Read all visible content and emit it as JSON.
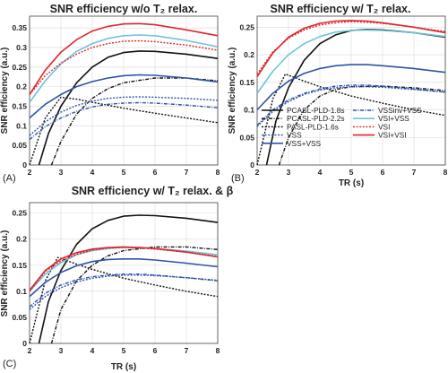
{
  "series_styles": [
    {
      "key": "pcasl18",
      "color": "#111111",
      "dash": "",
      "width": 1.6
    },
    {
      "key": "pcasl22",
      "color": "#111111",
      "dash": "4,1.5,1,1.5",
      "width": 1.4
    },
    {
      "key": "pasl16",
      "color": "#111111",
      "dash": "2,1.6",
      "width": 1.4
    },
    {
      "key": "vss",
      "color": "#2f52a8",
      "dash": "2,1.6",
      "width": 1.4
    },
    {
      "key": "vssvss",
      "color": "#2f52a8",
      "dash": "",
      "width": 1.6
    },
    {
      "key": "vssinv",
      "color": "#2f52a8",
      "dash": "4,1.5,1,1.5",
      "width": 1.4
    },
    {
      "key": "vsivss",
      "color": "#6cc4dc",
      "dash": "",
      "width": 1.6
    },
    {
      "key": "vsi",
      "color": "#e0262b",
      "dash": "2,1.6",
      "width": 1.4
    },
    {
      "key": "vsivsi",
      "color": "#e0262b",
      "dash": "",
      "width": 1.6
    }
  ],
  "legend": [
    {
      "key": "pcasl18",
      "label": "PCASL-PLD-1.8s"
    },
    {
      "key": "pcasl22",
      "label": "PCASL-PLD-2.2s"
    },
    {
      "key": "pasl16",
      "label": "PASL-PLD-1.6s"
    },
    {
      "key": "vss",
      "label": "VSS"
    },
    {
      "key": "vssvss",
      "label": "VSS+VSS"
    },
    {
      "key": "vssinv",
      "label": "VSSinv+VSS"
    },
    {
      "key": "vsivss",
      "label": "VSI+VSS"
    },
    {
      "key": "vsi",
      "label": "VSI"
    },
    {
      "key": "vsivsi",
      "label": "VSI+VSI"
    }
  ],
  "chart_data": [
    {
      "type": "line",
      "panel_label": "(A)",
      "title": "SNR efficiency w/o T₂ relax.",
      "xlabel": "",
      "ylabel": "SNR efficiency (a.u.)",
      "xlim": [
        2,
        8
      ],
      "ylim": [
        0,
        0.38
      ],
      "xticks": [
        2,
        3,
        4,
        5,
        6,
        7,
        8
      ],
      "yticks": [
        0,
        0.05,
        0.1,
        0.15,
        0.2,
        0.25,
        0.3,
        0.35
      ],
      "grid": true,
      "series": [
        {
          "key": "pcasl18",
          "x": [
            2.3,
            2.6,
            3.0,
            3.5,
            4.0,
            4.5,
            5.0,
            5.5,
            6.0,
            7.0,
            8.0
          ],
          "y": [
            0,
            0.08,
            0.15,
            0.21,
            0.25,
            0.275,
            0.287,
            0.291,
            0.29,
            0.283,
            0.272
          ]
        },
        {
          "key": "pcasl22",
          "x": [
            2.7,
            3.0,
            3.5,
            4.0,
            4.5,
            5.0,
            6.0,
            7.0,
            8.0
          ],
          "y": [
            0,
            0.06,
            0.13,
            0.17,
            0.195,
            0.21,
            0.222,
            0.222,
            0.215
          ]
        },
        {
          "key": "pasl16",
          "x": [
            2.0,
            2.5,
            3.0,
            3.5,
            4.0,
            5.0,
            6.0,
            7.0,
            8.0
          ],
          "y": [
            0,
            0.12,
            0.173,
            0.168,
            0.16,
            0.145,
            0.132,
            0.12,
            0.108
          ]
        },
        {
          "key": "vss",
          "x": [
            2.0,
            2.5,
            3.0,
            3.5,
            4.0,
            4.5,
            5.0,
            5.5,
            6.0,
            7.0,
            8.0
          ],
          "y": [
            0.075,
            0.11,
            0.135,
            0.152,
            0.163,
            0.17,
            0.173,
            0.174,
            0.173,
            0.17,
            0.165
          ]
        },
        {
          "key": "vssvss",
          "x": [
            2.0,
            2.5,
            3.0,
            3.5,
            4.0,
            4.5,
            5.0,
            5.5,
            6.0,
            7.0,
            8.0
          ],
          "y": [
            0.12,
            0.155,
            0.18,
            0.2,
            0.213,
            0.222,
            0.228,
            0.23,
            0.229,
            0.222,
            0.212
          ]
        },
        {
          "key": "vssinv",
          "x": [
            2.0,
            2.5,
            3.0,
            3.5,
            4.0,
            4.5,
            5.0,
            5.5,
            6.0,
            7.0,
            8.0
          ],
          "y": [
            0.065,
            0.098,
            0.12,
            0.137,
            0.148,
            0.155,
            0.158,
            0.159,
            0.158,
            0.153,
            0.146
          ]
        },
        {
          "key": "vsivss",
          "x": [
            2.0,
            2.5,
            3.0,
            3.5,
            4.0,
            4.5,
            5.0,
            5.5,
            6.0,
            7.0,
            8.0
          ],
          "y": [
            0.16,
            0.215,
            0.258,
            0.29,
            0.31,
            0.323,
            0.33,
            0.332,
            0.33,
            0.318,
            0.302
          ]
        },
        {
          "key": "vsi",
          "x": [
            2.0,
            2.5,
            3.0,
            3.5,
            4.0,
            4.5,
            5.0,
            5.5,
            6.0,
            7.0,
            8.0
          ],
          "y": [
            0.18,
            0.228,
            0.26,
            0.283,
            0.3,
            0.31,
            0.316,
            0.317,
            0.315,
            0.306,
            0.293
          ]
        },
        {
          "key": "vsivsi",
          "x": [
            2.0,
            2.5,
            3.0,
            3.5,
            4.0,
            4.5,
            5.0,
            5.5,
            6.0,
            7.0,
            8.0
          ],
          "y": [
            0.18,
            0.242,
            0.288,
            0.32,
            0.342,
            0.354,
            0.36,
            0.361,
            0.358,
            0.345,
            0.33
          ]
        }
      ]
    },
    {
      "type": "line",
      "panel_label": "(B)",
      "title": "SNR efficiency w/ T₂ relax.",
      "xlabel": "TR (s)",
      "ylabel": "SNR efficiency (a.u.)",
      "xlim": [
        2,
        8
      ],
      "ylim": [
        0,
        0.27
      ],
      "xticks": [
        2,
        3,
        4,
        5,
        6,
        7,
        8
      ],
      "yticks": [
        0,
        0.05,
        0.1,
        0.15,
        0.2,
        0.25
      ],
      "grid": true,
      "series": [
        {
          "key": "pcasl18",
          "x": [
            2.3,
            2.6,
            3.0,
            3.5,
            4.0,
            4.5,
            5.0,
            5.5,
            6.0,
            7.0,
            8.0
          ],
          "y": [
            0,
            0.08,
            0.14,
            0.19,
            0.22,
            0.236,
            0.244,
            0.246,
            0.245,
            0.24,
            0.232
          ]
        },
        {
          "key": "pcasl22",
          "x": [
            2.7,
            3.0,
            3.5,
            4.0,
            4.5,
            5.0,
            6.0,
            7.0,
            8.0
          ],
          "y": [
            0,
            0.05,
            0.1,
            0.125,
            0.137,
            0.142,
            0.143,
            0.14,
            0.135
          ]
        },
        {
          "key": "pasl16",
          "x": [
            2.0,
            2.5,
            2.9,
            3.5,
            4.0,
            5.0,
            6.0,
            7.0,
            8.0
          ],
          "y": [
            0,
            0.12,
            0.165,
            0.152,
            0.142,
            0.125,
            0.112,
            0.1,
            0.09
          ]
        },
        {
          "key": "vss",
          "x": [
            2.0,
            2.5,
            3.0,
            3.5,
            4.0,
            4.5,
            5.0,
            5.5,
            6.0,
            7.0,
            8.0
          ],
          "y": [
            0.07,
            0.097,
            0.115,
            0.128,
            0.136,
            0.14,
            0.142,
            0.142,
            0.141,
            0.137,
            0.132
          ]
        },
        {
          "key": "vssvss",
          "x": [
            2.0,
            2.5,
            3.0,
            3.5,
            4.0,
            4.5,
            5.0,
            5.5,
            6.0,
            7.0,
            8.0
          ],
          "y": [
            0.1,
            0.13,
            0.152,
            0.166,
            0.175,
            0.18,
            0.182,
            0.182,
            0.18,
            0.175,
            0.168
          ]
        },
        {
          "key": "vssinv",
          "x": [
            2.0,
            2.5,
            3.0,
            3.5,
            4.0,
            4.5,
            5.0,
            5.5,
            6.0,
            7.0,
            8.0
          ],
          "y": [
            0.072,
            0.1,
            0.118,
            0.13,
            0.138,
            0.143,
            0.145,
            0.145,
            0.143,
            0.138,
            0.132
          ]
        },
        {
          "key": "vsivss",
          "x": [
            2.0,
            2.5,
            3.0,
            3.5,
            4.0,
            4.5,
            5.0,
            5.5,
            6.0,
            7.0,
            8.0
          ],
          "y": [
            0.13,
            0.17,
            0.2,
            0.22,
            0.233,
            0.241,
            0.244,
            0.245,
            0.244,
            0.24,
            0.233
          ]
        },
        {
          "key": "vsi",
          "x": [
            2.0,
            2.5,
            3.0,
            3.5,
            4.0,
            4.5,
            5.0,
            5.5,
            6.0,
            7.0,
            8.0
          ],
          "y": [
            0.165,
            0.205,
            0.23,
            0.245,
            0.254,
            0.258,
            0.26,
            0.259,
            0.257,
            0.25,
            0.242
          ]
        },
        {
          "key": "vsivsi",
          "x": [
            2.0,
            2.5,
            3.0,
            3.5,
            4.0,
            4.5,
            5.0,
            5.5,
            6.0,
            7.0,
            8.0
          ],
          "y": [
            0.16,
            0.203,
            0.232,
            0.248,
            0.257,
            0.261,
            0.262,
            0.261,
            0.258,
            0.25,
            0.24
          ]
        }
      ]
    },
    {
      "type": "line",
      "panel_label": "(C)",
      "title": "SNR efficiency w/ T₂ relax. & β",
      "xlabel": "TR (s)",
      "ylabel": "SNR efficiency (a.u.)",
      "xlim": [
        2,
        8
      ],
      "ylim": [
        0,
        0.27
      ],
      "xticks": [
        2,
        3,
        4,
        5,
        6,
        7,
        8
      ],
      "yticks": [
        0,
        0.05,
        0.1,
        0.15,
        0.2,
        0.25
      ],
      "grid": true,
      "series": [
        {
          "key": "pcasl18",
          "x": [
            2.3,
            2.6,
            3.0,
            3.5,
            4.0,
            4.5,
            5.0,
            5.5,
            6.0,
            7.0,
            8.0
          ],
          "y": [
            0,
            0.08,
            0.14,
            0.19,
            0.22,
            0.236,
            0.244,
            0.246,
            0.245,
            0.24,
            0.232
          ]
        },
        {
          "key": "pcasl22",
          "x": [
            2.7,
            3.0,
            3.5,
            4.0,
            4.5,
            5.0,
            6.0,
            7.0,
            8.0
          ],
          "y": [
            0,
            0.065,
            0.12,
            0.15,
            0.168,
            0.178,
            0.185,
            0.185,
            0.18
          ]
        },
        {
          "key": "pasl16",
          "x": [
            2.0,
            2.5,
            2.9,
            3.5,
            4.0,
            5.0,
            6.0,
            7.0,
            8.0
          ],
          "y": [
            0,
            0.12,
            0.165,
            0.152,
            0.142,
            0.125,
            0.112,
            0.1,
            0.09
          ]
        },
        {
          "key": "vss",
          "x": [
            2.0,
            2.5,
            3.0,
            3.5,
            4.0,
            4.5,
            5.0,
            5.5,
            6.0,
            7.0,
            8.0
          ],
          "y": [
            0.065,
            0.09,
            0.107,
            0.118,
            0.125,
            0.129,
            0.131,
            0.131,
            0.13,
            0.126,
            0.121
          ]
        },
        {
          "key": "vssvss",
          "x": [
            2.0,
            2.5,
            3.0,
            3.5,
            4.0,
            4.5,
            5.0,
            5.5,
            6.0,
            7.0,
            8.0
          ],
          "y": [
            0.09,
            0.117,
            0.136,
            0.149,
            0.157,
            0.161,
            0.162,
            0.162,
            0.16,
            0.154,
            0.147
          ]
        },
        {
          "key": "vssinv",
          "x": [
            2.0,
            2.5,
            3.0,
            3.5,
            4.0,
            4.5,
            5.0,
            5.5,
            6.0,
            7.0,
            8.0
          ],
          "y": [
            0.07,
            0.096,
            0.112,
            0.122,
            0.128,
            0.131,
            0.133,
            0.133,
            0.131,
            0.126,
            0.12
          ]
        },
        {
          "key": "vsivss",
          "x": [
            2.0,
            2.5,
            3.0,
            3.5,
            4.0,
            4.5,
            5.0,
            5.5,
            6.0,
            7.0,
            8.0
          ],
          "y": [
            0.1,
            0.133,
            0.155,
            0.17,
            0.178,
            0.182,
            0.184,
            0.184,
            0.182,
            0.177,
            0.17
          ]
        },
        {
          "key": "vsi",
          "x": [
            2.0,
            2.5,
            3.0,
            3.5,
            4.0,
            4.5,
            5.0,
            5.5,
            6.0,
            7.0,
            8.0
          ],
          "y": [
            0.1,
            0.138,
            0.158,
            0.171,
            0.179,
            0.183,
            0.184,
            0.183,
            0.181,
            0.175,
            0.167
          ]
        },
        {
          "key": "vsivsi",
          "x": [
            2.0,
            2.5,
            3.0,
            3.5,
            4.0,
            4.5,
            5.0,
            5.5,
            6.0,
            7.0,
            8.0
          ],
          "y": [
            0.102,
            0.14,
            0.162,
            0.174,
            0.181,
            0.184,
            0.185,
            0.184,
            0.182,
            0.175,
            0.166
          ]
        }
      ]
    }
  ]
}
